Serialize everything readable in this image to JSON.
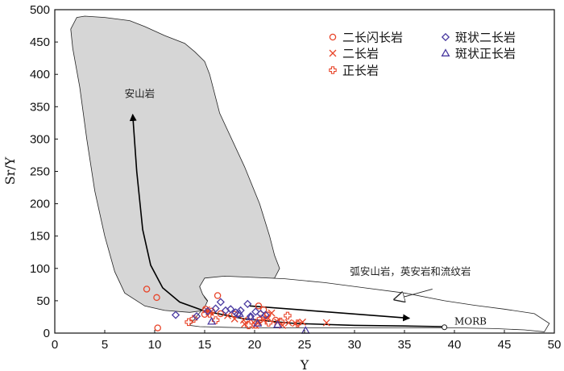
{
  "chart_data": {
    "type": "scatter",
    "xlabel": "Y",
    "ylabel": "Sr/Y",
    "xlim": [
      0,
      50
    ],
    "ylim": [
      0,
      500
    ],
    "x_ticks": [
      0,
      5,
      10,
      15,
      20,
      25,
      30,
      35,
      40,
      45,
      50
    ],
    "y_ticks": [
      0,
      50,
      100,
      150,
      200,
      250,
      300,
      350,
      400,
      450,
      500
    ],
    "regions": [
      {
        "name": "安山岩",
        "fill": "#d6d6d6",
        "label_pos": [
          8.5,
          365
        ],
        "polygon": [
          [
            2.2,
            488
          ],
          [
            3,
            490
          ],
          [
            5,
            488
          ],
          [
            7.5,
            483
          ],
          [
            9,
            474
          ],
          [
            11,
            460
          ],
          [
            13,
            448
          ],
          [
            14,
            435
          ],
          [
            15,
            420
          ],
          [
            15.5,
            400
          ],
          [
            16.5,
            340
          ],
          [
            19,
            257
          ],
          [
            20.5,
            200
          ],
          [
            21,
            175
          ],
          [
            21.5,
            150
          ],
          [
            22,
            120
          ],
          [
            22.5,
            100
          ],
          [
            22,
            85
          ],
          [
            20,
            80
          ],
          [
            17,
            78
          ],
          [
            14.5,
            72
          ],
          [
            15,
            55
          ],
          [
            15.5,
            45
          ],
          [
            15,
            35
          ],
          [
            13.5,
            32
          ],
          [
            11,
            35
          ],
          [
            9,
            42
          ],
          [
            7,
            62
          ],
          [
            6,
            95
          ],
          [
            5,
            150
          ],
          [
            4,
            220
          ],
          [
            3.2,
            300
          ],
          [
            2.5,
            380
          ],
          [
            1.8,
            440
          ],
          [
            1.6,
            470
          ]
        ]
      },
      {
        "name": "弧安山岩，英安岩和流纹岩",
        "fill": "#ffffff",
        "label_pos": [
          35.6,
          90
        ],
        "polygon": [
          [
            14.5,
            72
          ],
          [
            15,
            85
          ],
          [
            17,
            88
          ],
          [
            20,
            86
          ],
          [
            23,
            84
          ],
          [
            27,
            78
          ],
          [
            31,
            70
          ],
          [
            35,
            62
          ],
          [
            39,
            50
          ],
          [
            42,
            43
          ],
          [
            45,
            37
          ],
          [
            48,
            30
          ],
          [
            49.5,
            15
          ],
          [
            49,
            2
          ],
          [
            47,
            5
          ],
          [
            44,
            7
          ],
          [
            41,
            8
          ],
          [
            38,
            8
          ],
          [
            35,
            8
          ],
          [
            31,
            8
          ],
          [
            27,
            8
          ],
          [
            23,
            8
          ],
          [
            20,
            8
          ],
          [
            17,
            9
          ],
          [
            14.5,
            10
          ],
          [
            13.5,
            12
          ],
          [
            13.8,
            18
          ],
          [
            14.3,
            28
          ],
          [
            15,
            40
          ],
          [
            15.3,
            50
          ],
          [
            14.8,
            60
          ]
        ]
      }
    ],
    "pointer": {
      "from": [
        37.8,
        68
      ],
      "to": [
        34,
        52
      ]
    },
    "trend_curve": [
      [
        7.8,
        338
      ],
      [
        8.2,
        250
      ],
      [
        8.8,
        160
      ],
      [
        9.6,
        105
      ],
      [
        10.8,
        70
      ],
      [
        12.5,
        48
      ],
      [
        15,
        34
      ],
      [
        19,
        22
      ],
      [
        24,
        15
      ],
      [
        30,
        12
      ],
      [
        35,
        11
      ],
      [
        39,
        10
      ]
    ],
    "trend_straight": {
      "from": [
        19.5,
        42
      ],
      "to": [
        35.5,
        23
      ]
    },
    "morb": {
      "label": "MORB",
      "point": [
        39,
        9
      ],
      "label_pos": [
        40,
        13
      ]
    },
    "legend": [
      {
        "label": "二长闪长岩",
        "marker": "circle",
        "color": "#e8452a"
      },
      {
        "label": "二长岩",
        "marker": "x",
        "color": "#e8452a"
      },
      {
        "label": "正长岩",
        "marker": "plus",
        "color": "#e8452a"
      },
      {
        "label": "斑状二长岩",
        "marker": "diamond",
        "color": "#4a3aa0"
      },
      {
        "label": "斑状正长岩",
        "marker": "triangle",
        "color": "#4a3aa0"
      }
    ],
    "series": [
      {
        "name": "二长闪长岩",
        "marker": "circle",
        "color": "#e8452a",
        "x": [
          9.2,
          10.2,
          10.3,
          16.3,
          15.1,
          15.7,
          15.0,
          18.0,
          20.4,
          20.9,
          21.3,
          16.6,
          22.1
        ],
        "y": [
          68,
          55,
          8,
          58,
          37,
          34,
          29,
          29,
          42,
          36,
          28,
          30,
          20
        ]
      },
      {
        "name": "二长岩",
        "marker": "x",
        "color": "#e8452a",
        "x": [
          15.2,
          15.6,
          17.3,
          18.0,
          18.9,
          19.6,
          20.4,
          20.9,
          21.3,
          22.3,
          23.4,
          24.1,
          24.8,
          27.2,
          21.7,
          19.0,
          20.1,
          22.8
        ],
        "y": [
          36,
          32,
          27,
          22,
          20,
          21,
          17,
          20,
          24,
          17,
          16,
          15,
          17,
          16,
          31,
          14,
          12,
          12
        ]
      },
      {
        "name": "正长岩",
        "marker": "plus",
        "color": "#e8452a",
        "x": [
          13.4,
          13.9,
          16.1,
          19.4,
          20.1,
          21.4,
          22.6,
          23.3,
          24.3,
          20.6,
          15.5
        ],
        "y": [
          17,
          22,
          20,
          12,
          13,
          16,
          18,
          27,
          15,
          22,
          30
        ]
      },
      {
        "name": "斑状二长岩",
        "marker": "diamond",
        "color": "#4a3aa0",
        "x": [
          12.1,
          14.2,
          15.3,
          16.1,
          16.6,
          17.6,
          18.1,
          18.6,
          19.3,
          19.6,
          20.1,
          20.6,
          21.1,
          17.1,
          18.3
        ],
        "y": [
          28,
          26,
          34,
          38,
          48,
          37,
          32,
          35,
          45,
          26,
          33,
          30,
          28,
          35,
          29
        ]
      },
      {
        "name": "斑状正长岩",
        "marker": "triangle",
        "color": "#4a3aa0",
        "x": [
          15.7,
          18.5,
          19.6,
          20.3,
          22.3,
          25.1
        ],
        "y": [
          18,
          30,
          25,
          15,
          13,
          4
        ]
      }
    ]
  }
}
